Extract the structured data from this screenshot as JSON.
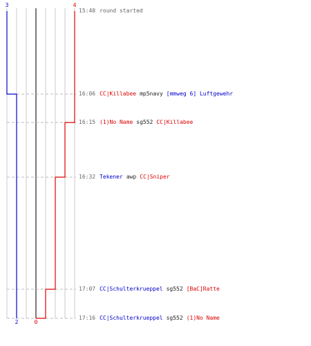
{
  "palette": {
    "grid": "#c8c8c8",
    "dashes": "#bbbbbb",
    "center_line": "#7a7a7a",
    "team_blue": "#0000cc",
    "team_red": "#dd0000",
    "text_default": "#222222",
    "time_text": "#666666"
  },
  "score_labels": {
    "blue_start": "3",
    "red_start": "4",
    "blue_end": "2",
    "red_end": "0"
  },
  "events": [
    {
      "time": "15:40",
      "parts": [
        {
          "text": "round started",
          "color": "#666666"
        }
      ]
    },
    {
      "time": "16:06",
      "parts": [
        {
          "text": "CC|Killabee",
          "color": "#dd0000"
        },
        {
          "text": "mp5navy",
          "color": "#222222"
        },
        {
          "text": "[mmweg 6] Luftgewehr",
          "color": "#0000cc"
        }
      ]
    },
    {
      "time": "16:15",
      "parts": [
        {
          "text": "(1)No Name",
          "color": "#dd0000"
        },
        {
          "text": "sg552",
          "color": "#222222"
        },
        {
          "text": "CC|Killabee",
          "color": "#dd0000"
        }
      ]
    },
    {
      "time": "16:32",
      "parts": [
        {
          "text": "Tekener",
          "color": "#0000cc"
        },
        {
          "text": "awp",
          "color": "#222222"
        },
        {
          "text": "CC|Sniper",
          "color": "#dd0000"
        }
      ]
    },
    {
      "time": "17:07",
      "parts": [
        {
          "text": "CC|Schulterkrueppel",
          "color": "#0000cc"
        },
        {
          "text": "sg552",
          "color": "#222222"
        },
        {
          "text": "[BaC]Ratte",
          "color": "#dd0000"
        }
      ]
    },
    {
      "time": "17:16",
      "parts": [
        {
          "text": "CC|Schulterkrueppel",
          "color": "#0000cc"
        },
        {
          "text": "sg552",
          "color": "#222222"
        },
        {
          "text": "(1)No Name",
          "color": "#dd0000"
        }
      ]
    }
  ],
  "chart_data": {
    "type": "line",
    "x_unit": "players alive",
    "time_range": [
      "15:40",
      "17:16"
    ],
    "series": [
      {
        "team": "blue",
        "color": "#0000cc",
        "points": [
          {
            "time": "15:40",
            "alive": 3
          },
          {
            "time": "16:06",
            "alive": 2
          },
          {
            "time": "17:16",
            "alive": 2
          }
        ]
      },
      {
        "team": "red",
        "color": "#dd0000",
        "points": [
          {
            "time": "15:40",
            "alive": 4
          },
          {
            "time": "16:15",
            "alive": 3
          },
          {
            "time": "16:32",
            "alive": 2
          },
          {
            "time": "17:07",
            "alive": 1
          },
          {
            "time": "17:16",
            "alive": 0
          }
        ]
      }
    ]
  }
}
